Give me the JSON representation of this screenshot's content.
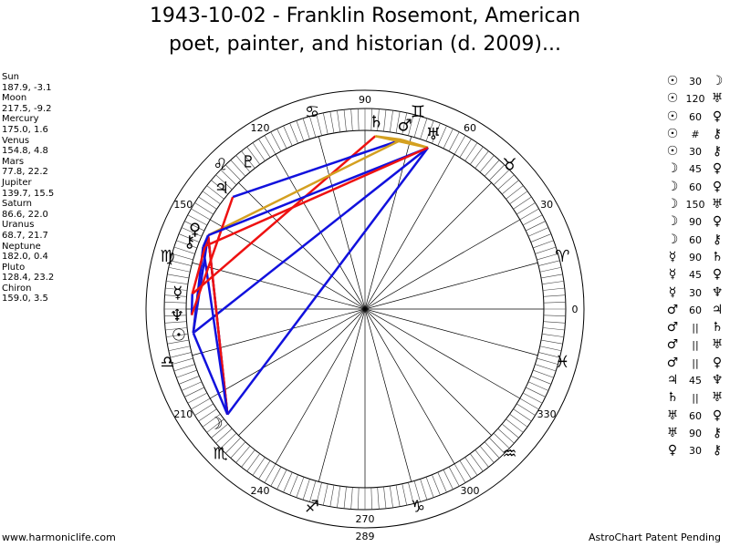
{
  "title": {
    "line1": "1943-10-02 - Franklin Rosemont, American",
    "line2": "poet, painter, and historian (d. 2009)..."
  },
  "planet_list": [
    {
      "name": "Sun",
      "coords": "187.9, -3.1"
    },
    {
      "name": "Moon",
      "coords": "217.5, -9.2"
    },
    {
      "name": "Mercury",
      "coords": "175.0, 1.6"
    },
    {
      "name": "Venus",
      "coords": "154.8, 4.8"
    },
    {
      "name": "Mars",
      "coords": "77.8, 22.2"
    },
    {
      "name": "Jupiter",
      "coords": "139.7, 15.5"
    },
    {
      "name": "Saturn",
      "coords": "86.6, 22.0"
    },
    {
      "name": "Uranus",
      "coords": "68.7, 21.7"
    },
    {
      "name": "Neptune",
      "coords": "182.0, 0.4"
    },
    {
      "name": "Pluto",
      "coords": "128.4, 23.2"
    },
    {
      "name": "Chiron",
      "coords": "159.0, 3.5"
    }
  ],
  "aspect_list": [
    {
      "p1": "☉",
      "angle": "30",
      "p2": "☽"
    },
    {
      "p1": "☉",
      "angle": "120",
      "p2": "♅"
    },
    {
      "p1": "☉",
      "angle": "60",
      "p2": "♀"
    },
    {
      "p1": "☉",
      "angle": "#",
      "p2": "⚷"
    },
    {
      "p1": "☉",
      "angle": "30",
      "p2": "⚷"
    },
    {
      "p1": "☽",
      "angle": "45",
      "p2": "♀"
    },
    {
      "p1": "☽",
      "angle": "60",
      "p2": "♀"
    },
    {
      "p1": "☽",
      "angle": "150",
      "p2": "♅"
    },
    {
      "p1": "☽",
      "angle": "90",
      "p2": "♀"
    },
    {
      "p1": "☽",
      "angle": "60",
      "p2": "⚷"
    },
    {
      "p1": "☿",
      "angle": "90",
      "p2": "♄"
    },
    {
      "p1": "☿",
      "angle": "45",
      "p2": "♀"
    },
    {
      "p1": "☿",
      "angle": "30",
      "p2": "♆"
    },
    {
      "p1": "♂",
      "angle": "60",
      "p2": "♃"
    },
    {
      "p1": "♂",
      "angle": "||",
      "p2": "♄"
    },
    {
      "p1": "♂",
      "angle": "||",
      "p2": "♅"
    },
    {
      "p1": "♂",
      "angle": "||",
      "p2": "♀"
    },
    {
      "p1": "♃",
      "angle": "45",
      "p2": "♆"
    },
    {
      "p1": "♄",
      "angle": "||",
      "p2": "♅"
    },
    {
      "p1": "♅",
      "angle": "60",
      "p2": "♀"
    },
    {
      "p1": "♅",
      "angle": "90",
      "p2": "⚷"
    },
    {
      "p1": "♀",
      "angle": "30",
      "p2": "⚷"
    }
  ],
  "footer": {
    "left": "www.harmoniclife.com",
    "center": "289",
    "right": "AstroChart Patent Pending"
  },
  "wheel": {
    "degree_labels": [
      "0",
      "30",
      "60",
      "90",
      "120",
      "150",
      "210",
      "240",
      "270",
      "300",
      "330"
    ],
    "sign_glyphs": [
      "♈",
      "♉",
      "♊",
      "♋",
      "♌",
      "♍",
      "♎",
      "♏",
      "♐",
      "♑",
      "♒",
      "♓"
    ],
    "planets": [
      {
        "name": "Sun",
        "glyph": "☉",
        "lon": 187.9
      },
      {
        "name": "Moon",
        "glyph": "☽",
        "lon": 217.5
      },
      {
        "name": "Mercury",
        "glyph": "☿",
        "lon": 175.0
      },
      {
        "name": "Venus",
        "glyph": "♀",
        "lon": 154.8
      },
      {
        "name": "Mars",
        "glyph": "♂",
        "lon": 77.8
      },
      {
        "name": "Jupiter",
        "glyph": "♃",
        "lon": 139.7
      },
      {
        "name": "Saturn",
        "glyph": "♄",
        "lon": 86.6
      },
      {
        "name": "Uranus",
        "glyph": "♅",
        "lon": 68.7
      },
      {
        "name": "Neptune",
        "glyph": "♆",
        "lon": 182.0
      },
      {
        "name": "Pluto",
        "glyph": "♇",
        "lon": 128.4
      },
      {
        "name": "Chiron",
        "glyph": "⚷",
        "lon": 159.0
      }
    ],
    "colors": {
      "hard_aspect": "#ee1111",
      "soft_aspect": "#1111dd",
      "minor_aspect": "#d4a020",
      "ring": "#000000"
    }
  }
}
